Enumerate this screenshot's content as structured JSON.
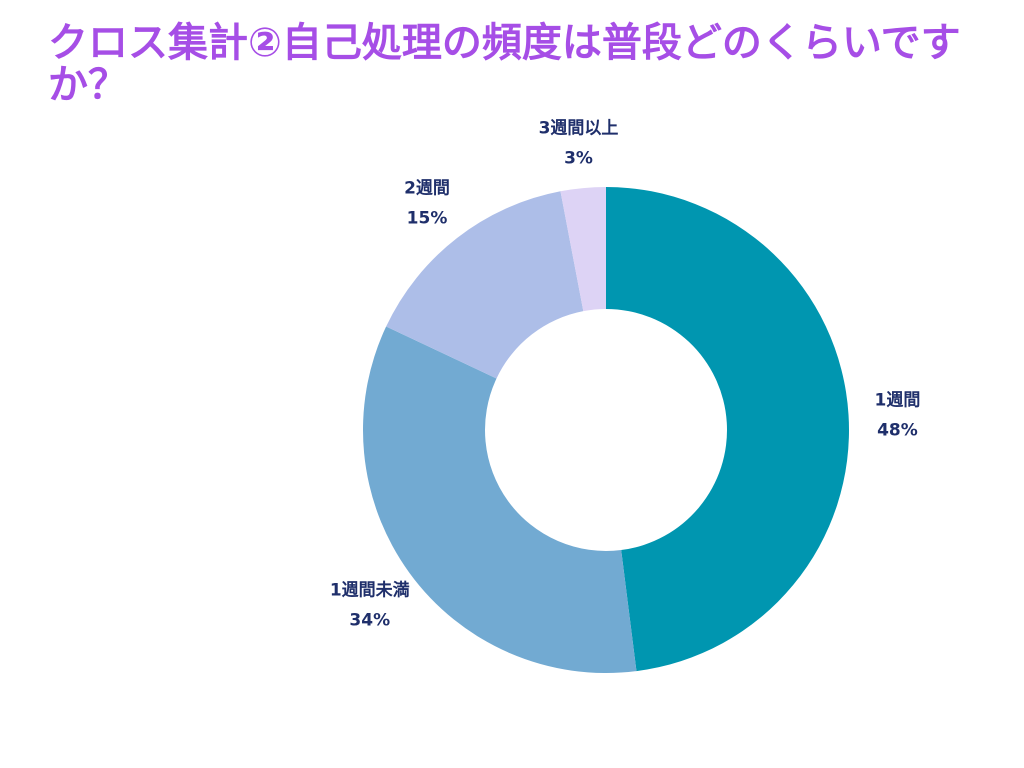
{
  "chart_data": {
    "type": "pie",
    "title": "クロス集計②自己処理の頻度は普段どのくらいですか？",
    "categories": [
      "1週間",
      "1週間未満",
      "2週間",
      "3週間以上"
    ],
    "values": [
      48,
      34,
      15,
      3
    ],
    "value_labels": [
      "48%",
      "34%",
      "15%",
      "3%"
    ],
    "colors": [
      "#0096b0",
      "#72aad2",
      "#adbee8",
      "#ddd3f5"
    ],
    "donut": true,
    "legend": "none",
    "title_color": "#a64ee6",
    "label_color": "#1f2f6b"
  }
}
